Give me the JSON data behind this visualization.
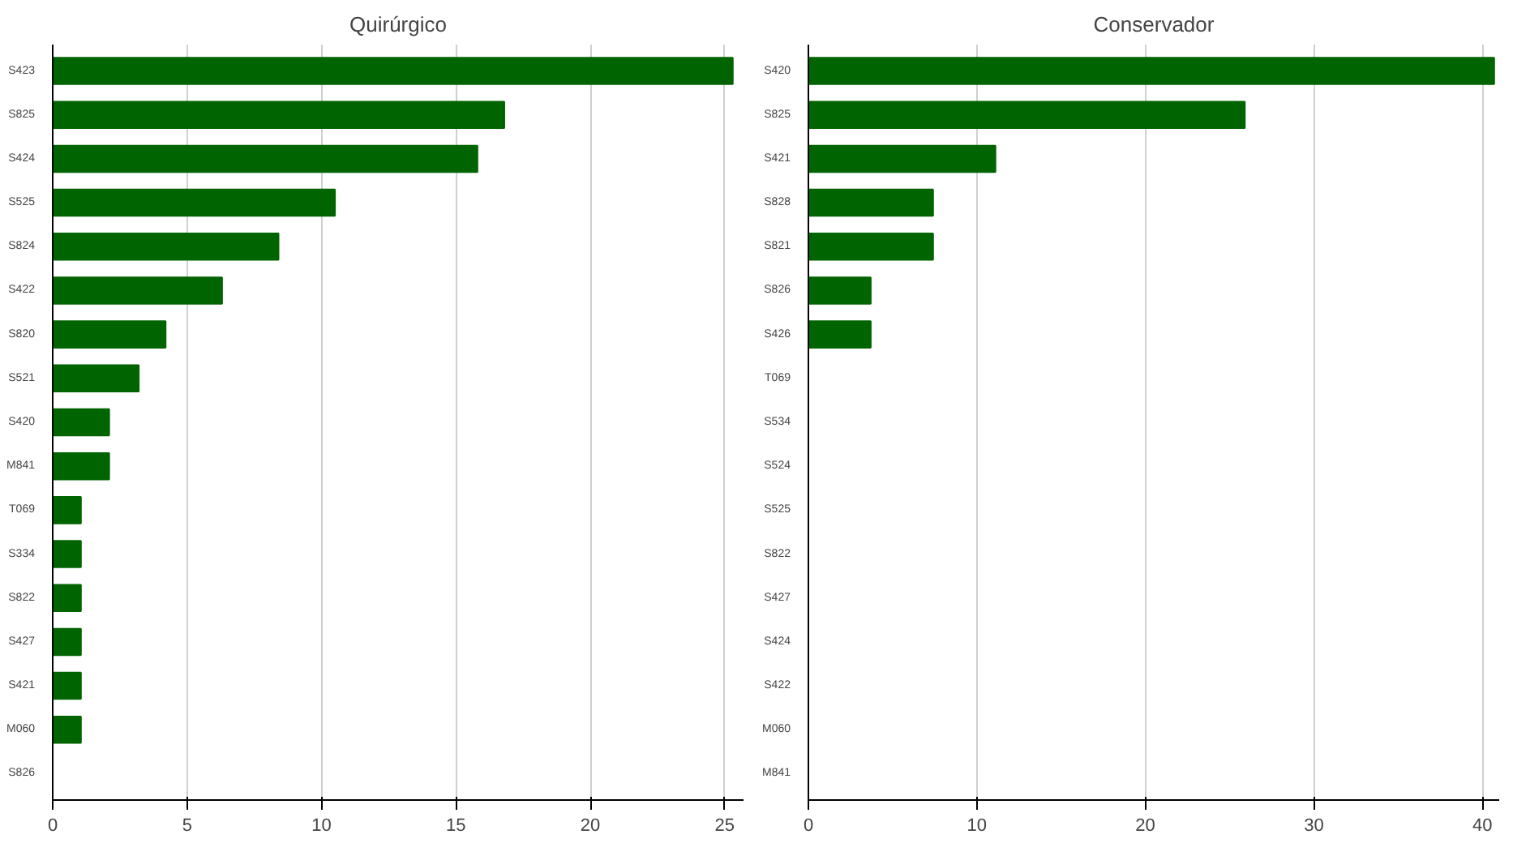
{
  "chart_data": [
    {
      "type": "bar",
      "orientation": "horizontal",
      "title": "Quirúrgico",
      "categories": [
        "S423",
        "S825",
        "S424",
        "S525",
        "S824",
        "S422",
        "S820",
        "S521",
        "S420",
        "M841",
        "T069",
        "S334",
        "S822",
        "S427",
        "S421",
        "M060",
        "S826"
      ],
      "values": [
        25.3,
        16.8,
        15.8,
        10.5,
        8.4,
        6.3,
        4.2,
        3.2,
        2.1,
        2.1,
        1.05,
        1.05,
        1.05,
        1.05,
        1.05,
        1.05,
        0
      ],
      "color": "#006400",
      "xlim": [
        0,
        25.7
      ],
      "xticks": [
        0,
        5,
        10,
        15,
        20,
        25
      ],
      "grid": "x"
    },
    {
      "type": "bar",
      "orientation": "horizontal",
      "title": "Conservador",
      "categories": [
        "S420",
        "S825",
        "S421",
        "S828",
        "S821",
        "S826",
        "S426",
        "T069",
        "S534",
        "S524",
        "S525",
        "S822",
        "S427",
        "S424",
        "S422",
        "M060",
        "M841"
      ],
      "values": [
        40.7,
        25.9,
        11.1,
        7.4,
        7.4,
        3.7,
        3.7,
        0,
        0,
        0,
        0,
        0,
        0,
        0,
        0,
        0,
        0
      ],
      "color": "#006400",
      "xlim": [
        0,
        41
      ],
      "xticks": [
        0,
        10,
        20,
        30,
        40
      ],
      "grid": "x"
    }
  ]
}
